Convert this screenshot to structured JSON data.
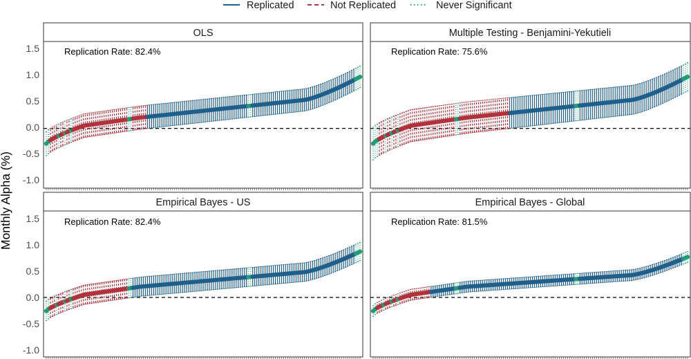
{
  "chart_data": {
    "type": "errorbar",
    "ylabel": "Monthly Alpha (%)",
    "xlabel": "",
    "ylim": [
      -1.1,
      1.6
    ],
    "yticks": [
      -1.0,
      -0.5,
      0.0,
      0.5,
      1.0,
      1.5
    ],
    "ytick_labels": [
      "-1.0",
      "-0.5",
      "0.0",
      "0.5",
      "1.0",
      "1.5"
    ],
    "reference_line": {
      "y": 0.0,
      "style": "dashed"
    },
    "grid": false,
    "legend_position": "top",
    "n_factors": 153,
    "legend": [
      {
        "name": "Replicated",
        "color": "#1f5f8b",
        "linestyle": "solid"
      },
      {
        "name": "Not Replicated",
        "color": "#b2323c",
        "linestyle": "dashed"
      },
      {
        "name": "Never Significant",
        "color": "#1e9e76",
        "linestyle": "dotted"
      }
    ],
    "panels": [
      {
        "title": "OLS",
        "replication_rate": "Replication Rate: 82.4%",
        "min_alpha": -0.28,
        "max_alpha": 0.95,
        "ci_halfwidth_start": 0.22,
        "ci_halfwidth_end": 0.2,
        "not_replicated_until": 0.22,
        "never_significant_points": [
          0,
          1,
          6,
          9,
          12,
          40,
          41,
          98,
          99,
          150,
          151,
          152
        ]
      },
      {
        "title": "Multiple Testing - Benjamini-Yekutieli",
        "replication_rate": "Replication Rate: 75.6%",
        "min_alpha": -0.28,
        "max_alpha": 0.95,
        "ci_halfwidth_start": 0.3,
        "ci_halfwidth_end": 0.26,
        "not_replicated_until": 0.3,
        "never_significant_points": [
          0,
          1,
          2,
          6,
          9,
          12,
          40,
          41,
          98,
          99,
          150,
          151,
          152
        ]
      },
      {
        "title": "Empirical Bayes - US",
        "replication_rate": "Replication Rate: 82.4%",
        "min_alpha": -0.25,
        "max_alpha": 0.85,
        "ci_halfwidth_start": 0.18,
        "ci_halfwidth_end": 0.17,
        "not_replicated_until": 0.2,
        "never_significant_points": [
          0,
          1,
          5,
          9,
          12,
          40,
          41,
          98,
          99,
          150,
          151,
          152
        ]
      },
      {
        "title": "Empirical Bayes - Global",
        "replication_rate": "Replication Rate: 81.5%",
        "min_alpha": -0.25,
        "max_alpha": 0.75,
        "ci_halfwidth_start": 0.1,
        "ci_halfwidth_end": 0.1,
        "not_replicated_until": 0.2,
        "never_significant_points": [
          0,
          1,
          5,
          9,
          12,
          40,
          41,
          98,
          99,
          150,
          151,
          152
        ]
      }
    ]
  }
}
